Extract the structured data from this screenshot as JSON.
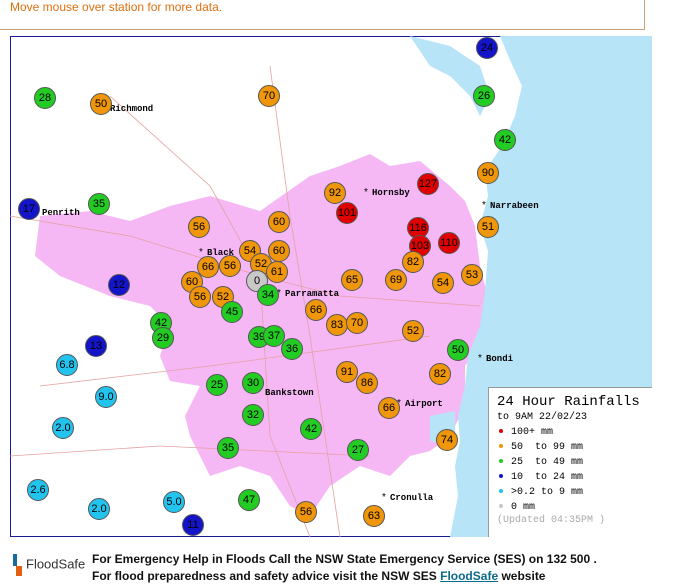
{
  "header": {
    "hint": "Move mouse over station for more data."
  },
  "stations": [
    {
      "value": "24",
      "color": "#1414c8"
    },
    {
      "value": "28",
      "color": "#22cc22"
    },
    {
      "value": "50",
      "color": "#f0960a"
    },
    {
      "value": "70",
      "color": "#f0960a"
    },
    {
      "value": "26",
      "color": "#22cc22"
    },
    {
      "value": "42",
      "color": "#22cc22"
    },
    {
      "value": "90",
      "color": "#f0960a"
    },
    {
      "value": "127",
      "color": "#e00000"
    },
    {
      "value": "92",
      "color": "#f0960a"
    },
    {
      "value": "101",
      "color": "#e00000"
    },
    {
      "value": "17",
      "color": "#1414c8"
    },
    {
      "value": "35",
      "color": "#22cc22"
    },
    {
      "value": "60",
      "color": "#f0960a"
    },
    {
      "value": "56",
      "color": "#f0960a"
    },
    {
      "value": "116",
      "color": "#e00000"
    },
    {
      "value": "110",
      "color": "#e00000"
    },
    {
      "value": "103",
      "color": "#e00000"
    },
    {
      "value": "51",
      "color": "#f0960a"
    },
    {
      "value": "54",
      "color": "#f0960a"
    },
    {
      "value": "60",
      "color": "#f0960a"
    },
    {
      "value": "52",
      "color": "#f0960a"
    },
    {
      "value": "61",
      "color": "#f0960a"
    },
    {
      "value": "66",
      "color": "#f0960a"
    },
    {
      "value": "56",
      "color": "#f0960a"
    },
    {
      "value": "82",
      "color": "#f0960a"
    },
    {
      "value": "0",
      "color": "#c8c8c8"
    },
    {
      "value": "65",
      "color": "#f0960a"
    },
    {
      "value": "69",
      "color": "#f0960a"
    },
    {
      "value": "54",
      "color": "#f0960a"
    },
    {
      "value": "53",
      "color": "#f0960a"
    },
    {
      "value": "12",
      "color": "#1414c8"
    },
    {
      "value": "60",
      "color": "#f0960a"
    },
    {
      "value": "56",
      "color": "#f0960a"
    },
    {
      "value": "52",
      "color": "#f0960a"
    },
    {
      "value": "34",
      "color": "#22cc22"
    },
    {
      "value": "45",
      "color": "#22cc22"
    },
    {
      "value": "66",
      "color": "#f0960a"
    },
    {
      "value": "83",
      "color": "#f0960a"
    },
    {
      "value": "70",
      "color": "#f0960a"
    },
    {
      "value": "52",
      "color": "#f0960a"
    },
    {
      "value": "42",
      "color": "#22cc22"
    },
    {
      "value": "29",
      "color": "#22cc22"
    },
    {
      "value": "39",
      "color": "#22cc22"
    },
    {
      "value": "37",
      "color": "#22cc22"
    },
    {
      "value": "36",
      "color": "#22cc22"
    },
    {
      "value": "13",
      "color": "#1414c8"
    },
    {
      "value": "50",
      "color": "#22cc22"
    },
    {
      "value": "6.8",
      "color": "#22c4ee"
    },
    {
      "value": "91",
      "color": "#f0960a"
    },
    {
      "value": "86",
      "color": "#f0960a"
    },
    {
      "value": "82",
      "color": "#f0960a"
    },
    {
      "value": "25",
      "color": "#22cc22"
    },
    {
      "value": "30",
      "color": "#22cc22"
    },
    {
      "value": "9.0",
      "color": "#22c4ee"
    },
    {
      "value": "66",
      "color": "#f0960a"
    },
    {
      "value": "32",
      "color": "#22cc22"
    },
    {
      "value": "2.0",
      "color": "#22c4ee"
    },
    {
      "value": "42",
      "color": "#22cc22"
    },
    {
      "value": "74",
      "color": "#f0960a"
    },
    {
      "value": "35",
      "color": "#22cc22"
    },
    {
      "value": "27",
      "color": "#22cc22"
    },
    {
      "value": "2.6",
      "color": "#22c4ee"
    },
    {
      "value": "5.0",
      "color": "#22c4ee"
    },
    {
      "value": "47",
      "color": "#22cc22"
    },
    {
      "value": "2.0",
      "color": "#22c4ee"
    },
    {
      "value": "56",
      "color": "#f0960a"
    },
    {
      "value": "63",
      "color": "#f0960a"
    },
    {
      "value": "11",
      "color": "#1414c8"
    }
  ],
  "places": [
    "Richmond",
    "Penrith",
    "Hornsby",
    "Narrabeen",
    "Black",
    "Parramatta",
    "Bondi",
    "Bankstown",
    "Airport",
    "Cronulla"
  ],
  "legend": {
    "title": "24 Hour Rainfalls",
    "subtitle": "to 9AM 22/02/23",
    "items": [
      {
        "label": "100+ mm",
        "color": "#e00000"
      },
      {
        "label": "50  to 99 mm",
        "color": "#f0960a"
      },
      {
        "label": "25  to 49 mm",
        "color": "#22cc22"
      },
      {
        "label": "10  to 24 mm",
        "color": "#1414c8"
      },
      {
        "label": ">0.2 to 9 mm",
        "color": "#22c4ee"
      },
      {
        "label": "0 mm",
        "color": "#c8c8c8"
      }
    ],
    "updated": "(Updated 04:35PM )"
  },
  "footer": {
    "logo": "FloodSafe",
    "line1": "For Emergency Help in Floods Call the NSW State Emergency Service (SES) on 132 500 .",
    "line2": "For flood preparedness and safety advice visit the NSW SES",
    "link": "FloodSafe",
    "line2_end": "website"
  }
}
